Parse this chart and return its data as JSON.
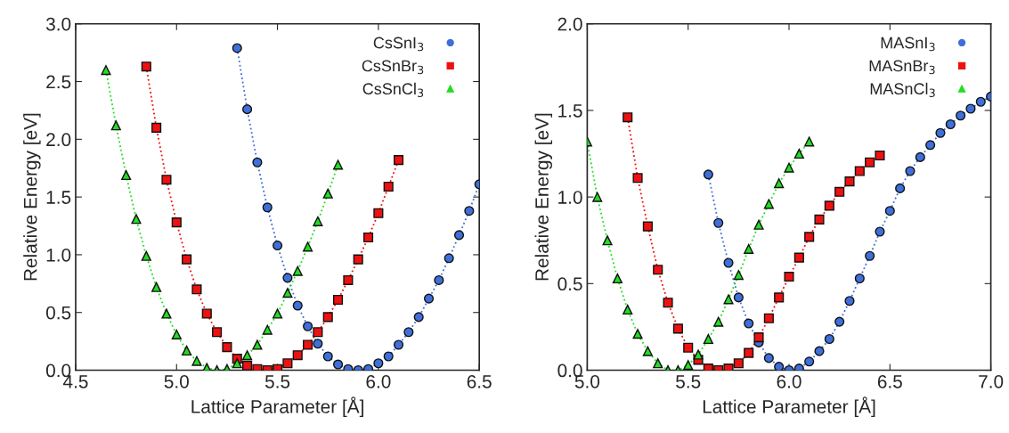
{
  "chart_data": [
    {
      "type": "line",
      "xlabel": "Lattice Parameter [Å]",
      "ylabel": "Relative Energy [eV]",
      "xlim": [
        4.5,
        6.5
      ],
      "ylim": [
        0.0,
        3.0
      ],
      "xticks": [
        4.5,
        {
          "value": 5,
          "label": "5.0"
        },
        5.5,
        {
          "value": 6,
          "label": "6.0"
        },
        6.5
      ],
      "yticks": [
        {
          "value": 0,
          "label": "0.0"
        },
        0.5,
        {
          "value": 1,
          "label": "1.0"
        },
        1.5,
        {
          "value": 2,
          "label": "2.0"
        },
        2.5,
        {
          "value": 3,
          "label": "3.0"
        }
      ],
      "legend": "top right",
      "line_style": "dotted",
      "grid": false,
      "series": [
        {
          "name": "CsSnI$_{3}$",
          "color": "#3f6fd9",
          "marker": "circle",
          "x": [
            5.3,
            5.35,
            5.4,
            5.45,
            5.5,
            5.55,
            5.6,
            5.65,
            5.7,
            5.75,
            5.8,
            5.85,
            5.9,
            5.95,
            6.0,
            6.05,
            6.1,
            6.15,
            6.2,
            6.25,
            6.3,
            6.35,
            6.4,
            6.45,
            6.5
          ],
          "values": [
            2.79,
            2.26,
            1.8,
            1.41,
            1.08,
            0.8,
            0.56,
            0.38,
            0.23,
            0.12,
            0.05,
            0.01,
            0.0,
            0.01,
            0.06,
            0.12,
            0.22,
            0.33,
            0.46,
            0.62,
            0.78,
            0.97,
            1.17,
            1.38,
            1.61
          ]
        },
        {
          "name": "CsSnBr$_{3}$",
          "color": "#ee1111",
          "marker": "square",
          "x": [
            4.85,
            4.9,
            4.95,
            5.0,
            5.05,
            5.1,
            5.15,
            5.2,
            5.25,
            5.3,
            5.35,
            5.4,
            5.45,
            5.5,
            5.55,
            5.6,
            5.65,
            5.7,
            5.75,
            5.8,
            5.85,
            5.9,
            5.95,
            6.0,
            6.05,
            6.1
          ],
          "values": [
            2.63,
            2.1,
            1.65,
            1.28,
            0.96,
            0.7,
            0.49,
            0.33,
            0.2,
            0.1,
            0.04,
            0.01,
            0.0,
            0.01,
            0.06,
            0.13,
            0.22,
            0.33,
            0.46,
            0.61,
            0.78,
            0.96,
            1.15,
            1.36,
            1.59,
            1.82
          ]
        },
        {
          "name": "CsSnCl$_{3}$",
          "color": "#22dd22",
          "marker": "triangle",
          "x": [
            4.65,
            4.7,
            4.75,
            4.8,
            4.85,
            4.9,
            4.95,
            5.0,
            5.05,
            5.1,
            5.15,
            5.2,
            5.25,
            5.3,
            5.35,
            5.4,
            5.45,
            5.5,
            5.55,
            5.6,
            5.65,
            5.7,
            5.75,
            5.8
          ],
          "values": [
            2.6,
            2.12,
            1.69,
            1.31,
            0.99,
            0.72,
            0.49,
            0.31,
            0.17,
            0.08,
            0.02,
            0.0,
            0.01,
            0.06,
            0.13,
            0.22,
            0.35,
            0.49,
            0.67,
            0.86,
            1.07,
            1.29,
            1.53,
            1.78
          ]
        }
      ]
    },
    {
      "type": "line",
      "xlabel": "Lattice Parameter [Å]",
      "ylabel": "Relative Energy [eV]",
      "xlim": [
        5.0,
        7.0
      ],
      "ylim": [
        0.0,
        2.0
      ],
      "xticks": [
        {
          "value": 5,
          "label": "5.0"
        },
        5.5,
        {
          "value": 6,
          "label": "6.0"
        },
        6.5,
        {
          "value": 7,
          "label": "7.0"
        }
      ],
      "yticks": [
        {
          "value": 0,
          "label": "0.0"
        },
        0.5,
        {
          "value": 1,
          "label": "1.0"
        },
        1.5,
        {
          "value": 2,
          "label": "2.0"
        }
      ],
      "legend": "top right",
      "line_style": "dotted",
      "grid": false,
      "series": [
        {
          "name": "MASnI$_{3}$",
          "color": "#3f6fd9",
          "marker": "circle",
          "x": [
            5.6,
            5.65,
            5.7,
            5.75,
            5.8,
            5.85,
            5.9,
            5.95,
            6.0,
            6.05,
            6.1,
            6.15,
            6.2,
            6.25,
            6.3,
            6.35,
            6.4,
            6.45,
            6.5,
            6.55,
            6.6,
            6.65,
            6.7,
            6.75,
            6.8,
            6.85,
            6.9,
            6.95,
            7.0
          ],
          "values": [
            1.13,
            0.85,
            0.62,
            0.42,
            0.27,
            0.16,
            0.07,
            0.02,
            0.0,
            0.01,
            0.05,
            0.11,
            0.18,
            0.28,
            0.4,
            0.53,
            0.66,
            0.8,
            0.92,
            1.05,
            1.15,
            1.23,
            1.3,
            1.37,
            1.42,
            1.47,
            1.51,
            1.55,
            1.58
          ]
        },
        {
          "name": "MASnBr$_{3}$",
          "color": "#ee1111",
          "marker": "square",
          "x": [
            5.2,
            5.25,
            5.3,
            5.35,
            5.4,
            5.45,
            5.5,
            5.55,
            5.6,
            5.65,
            5.7,
            5.75,
            5.8,
            5.85,
            5.9,
            5.95,
            6.0,
            6.05,
            6.1,
            6.15,
            6.2,
            6.25,
            6.3,
            6.35,
            6.4,
            6.45
          ],
          "values": [
            1.46,
            1.11,
            0.83,
            0.58,
            0.39,
            0.24,
            0.13,
            0.06,
            0.01,
            0.0,
            0.01,
            0.04,
            0.1,
            0.19,
            0.3,
            0.42,
            0.54,
            0.65,
            0.77,
            0.87,
            0.95,
            1.03,
            1.09,
            1.15,
            1.2,
            1.24
          ]
        },
        {
          "name": "MASnCl$_{3}$",
          "color": "#22dd22",
          "marker": "triangle",
          "x": [
            5.0,
            5.05,
            5.1,
            5.15,
            5.2,
            5.25,
            5.3,
            5.35,
            5.4,
            5.45,
            5.5,
            5.55,
            5.6,
            5.65,
            5.7,
            5.75,
            5.8,
            5.85,
            5.9,
            5.95,
            6.0,
            6.05,
            6.1
          ],
          "values": [
            1.32,
            1.0,
            0.75,
            0.53,
            0.35,
            0.21,
            0.11,
            0.04,
            0.0,
            0.0,
            0.03,
            0.09,
            0.18,
            0.28,
            0.41,
            0.55,
            0.7,
            0.84,
            0.96,
            1.08,
            1.17,
            1.25,
            1.32
          ]
        }
      ]
    }
  ]
}
